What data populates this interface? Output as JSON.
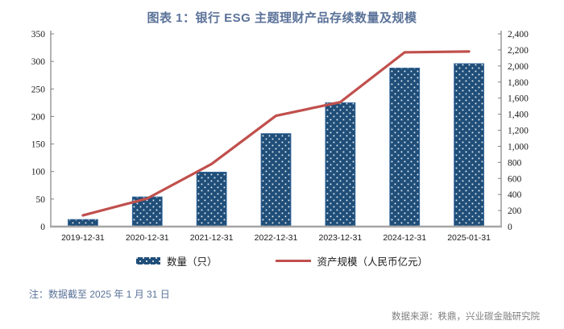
{
  "title": "图表 1：银行 ESG 主题理财产品存续数量及规模",
  "note": "注：数据截至 2025 年 1 月 31 日",
  "source": "数据来源：秩鼎，兴业碳金融研究院",
  "colors": {
    "title_blue": "#5B7299",
    "bar_navy": "#1F4E79",
    "bar_edge": "#3A6EA5",
    "line_red": "#C0504D",
    "axis_gray": "#808080",
    "baseline_gray": "#A6A6A6",
    "tick_label": "#1a1a1a",
    "source_gray": "#7F7F7F"
  },
  "chart_data": {
    "type": "bar",
    "subtype": "combo-bar-line-dual-axis",
    "title": "图表 1：银行 ESG 主题理财产品存续数量及规模",
    "categories": [
      "2019-12-31",
      "2020-12-31",
      "2021-12-31",
      "2022-12-31",
      "2023-12-31",
      "2024-12-31",
      "2025-01-31"
    ],
    "series": [
      {
        "name": "数量（只）",
        "type": "bar",
        "axis": "left",
        "color": "#1F4E79",
        "pattern": "white-dots",
        "values": [
          13,
          54,
          99,
          169,
          225,
          288,
          296
        ]
      },
      {
        "name": "资产规模（人民币亿元）",
        "type": "line",
        "axis": "right",
        "color": "#C0504D",
        "values": [
          140,
          350,
          780,
          1380,
          1550,
          2170,
          2180
        ]
      }
    ],
    "left_axis": {
      "min": 0,
      "max": 350,
      "step": 50,
      "tick_labels": [
        "0",
        "50",
        "100",
        "150",
        "200",
        "250",
        "300",
        "350"
      ]
    },
    "right_axis": {
      "min": 0,
      "max": 2400,
      "step": 200,
      "tick_labels": [
        "0",
        "200",
        "400",
        "600",
        "800",
        "1,000",
        "1,200",
        "1,400",
        "1,600",
        "1,800",
        "2,000",
        "2,200",
        "2,400"
      ]
    },
    "grid": false,
    "legend_position": "bottom"
  }
}
